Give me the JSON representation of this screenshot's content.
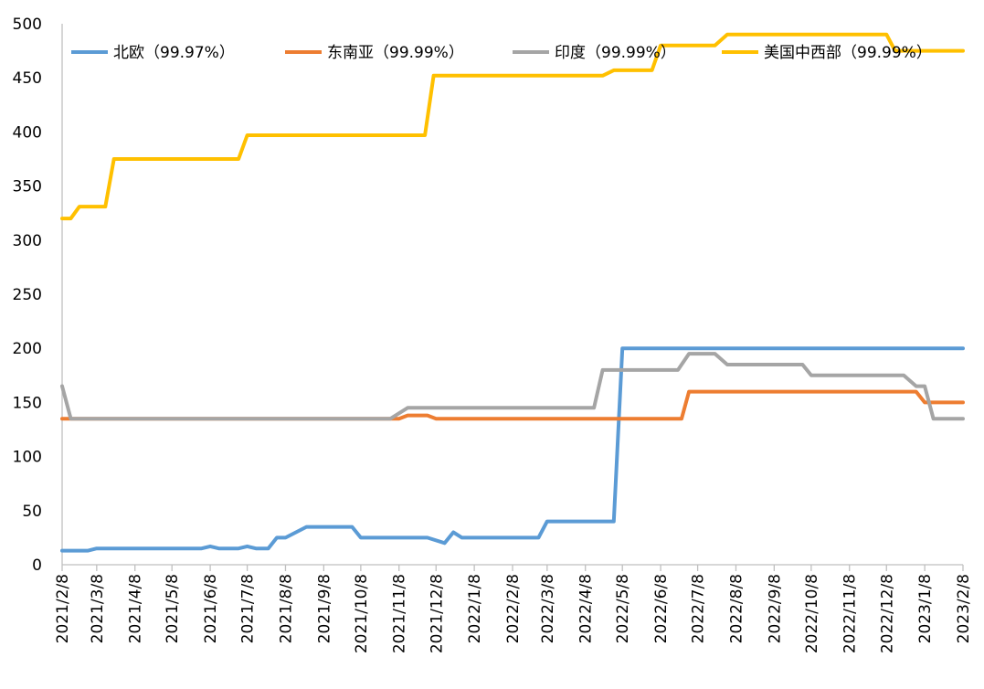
{
  "chart_data": {
    "type": "line",
    "title": "",
    "xlabel": "",
    "ylabel": "",
    "ylim": [
      0,
      500
    ],
    "yticks": [
      0,
      50,
      100,
      150,
      200,
      250,
      300,
      350,
      400,
      450,
      500
    ],
    "grid": false,
    "legend_position": "top",
    "x_tick_labels": [
      "2021/2/8",
      "2021/3/8",
      "2021/4/8",
      "2021/5/8",
      "2021/6/8",
      "2021/7/8",
      "2021/8/8",
      "2021/9/8",
      "2021/10/8",
      "2021/11/8",
      "2021/12/8",
      "2022/1/8",
      "2022/2/8",
      "2022/3/8",
      "2022/4/8",
      "2022/5/8",
      "2022/6/8",
      "2022/7/8",
      "2022/8/8",
      "2022/9/8",
      "2022/10/8",
      "2022/11/8",
      "2022/12/8",
      "2023/1/8",
      "2023/2/8"
    ],
    "series": [
      {
        "name": "北欧（99.97%）",
        "color": "#5B9BD5",
        "points": [
          [
            "2021/2/8",
            13
          ],
          [
            "2021/3/1",
            13
          ],
          [
            "2021/3/8",
            15
          ],
          [
            "2021/6/1",
            15
          ],
          [
            "2021/6/8",
            17
          ],
          [
            "2021/6/15",
            15
          ],
          [
            "2021/7/1",
            15
          ],
          [
            "2021/7/8",
            17
          ],
          [
            "2021/7/15",
            15
          ],
          [
            "2021/7/25",
            15
          ],
          [
            "2021/8/1",
            25
          ],
          [
            "2021/8/8",
            25
          ],
          [
            "2021/8/25",
            35
          ],
          [
            "2021/10/1",
            35
          ],
          [
            "2021/10/8",
            25
          ],
          [
            "2021/12/1",
            25
          ],
          [
            "2021/12/15",
            20
          ],
          [
            "2021/12/22",
            30
          ],
          [
            "2021/12/29",
            25
          ],
          [
            "2022/3/1",
            25
          ],
          [
            "2022/3/8",
            40
          ],
          [
            "2022/5/1",
            40
          ],
          [
            "2022/5/8",
            200
          ],
          [
            "2023/2/8",
            200
          ]
        ]
      },
      {
        "name": "东南亚（99.99%）",
        "color": "#ED7D31",
        "points": [
          [
            "2021/2/8",
            135
          ],
          [
            "2021/11/8",
            135
          ],
          [
            "2021/11/15",
            138
          ],
          [
            "2021/12/1",
            138
          ],
          [
            "2021/12/8",
            135
          ],
          [
            "2022/6/25",
            135
          ],
          [
            "2022/7/1",
            160
          ],
          [
            "2023/1/1",
            160
          ],
          [
            "2023/1/8",
            150
          ],
          [
            "2023/2/8",
            150
          ]
        ]
      },
      {
        "name": "印度（99.99%）",
        "color": "#A5A5A5",
        "points": [
          [
            "2021/2/8",
            165
          ],
          [
            "2021/2/15",
            135
          ],
          [
            "2021/11/1",
            135
          ],
          [
            "2021/11/15",
            145
          ],
          [
            "2022/4/15",
            145
          ],
          [
            "2022/4/22",
            180
          ],
          [
            "2022/6/22",
            180
          ],
          [
            "2022/7/1",
            195
          ],
          [
            "2022/7/22",
            195
          ],
          [
            "2022/8/1",
            185
          ],
          [
            "2022/10/1",
            185
          ],
          [
            "2022/10/8",
            175
          ],
          [
            "2022/12/22",
            175
          ],
          [
            "2023/1/1",
            165
          ],
          [
            "2023/1/8",
            165
          ],
          [
            "2023/1/15",
            135
          ],
          [
            "2023/2/8",
            135
          ]
        ]
      },
      {
        "name": "美国中西部（99.99%）",
        "color": "#FFC000",
        "points": [
          [
            "2021/2/8",
            320
          ],
          [
            "2021/2/15",
            320
          ],
          [
            "2021/2/22",
            331
          ],
          [
            "2021/3/15",
            331
          ],
          [
            "2021/3/22",
            375
          ],
          [
            "2021/7/1",
            375
          ],
          [
            "2021/7/8",
            397
          ],
          [
            "2021/11/29",
            397
          ],
          [
            "2021/12/6",
            452
          ],
          [
            "2022/4/22",
            452
          ],
          [
            "2022/5/1",
            457
          ],
          [
            "2022/6/1",
            457
          ],
          [
            "2022/6/8",
            480
          ],
          [
            "2022/7/22",
            480
          ],
          [
            "2022/8/1",
            490
          ],
          [
            "2022/12/8",
            490
          ],
          [
            "2022/12/15",
            475
          ],
          [
            "2023/2/8",
            475
          ]
        ]
      }
    ]
  }
}
